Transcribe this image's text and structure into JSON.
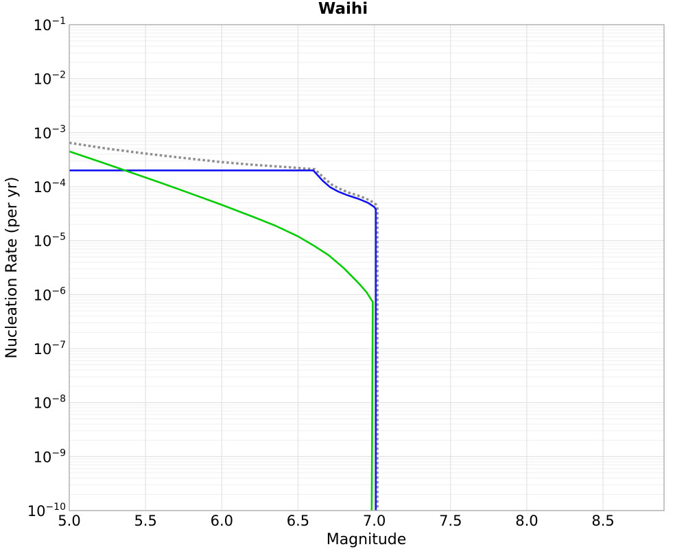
{
  "chart_data": {
    "type": "line",
    "title": "Waihi",
    "xlabel": "Magnitude",
    "ylabel": "Nucleation Rate (per yr)",
    "xlim": [
      5.0,
      8.9
    ],
    "ylim": [
      1e-10,
      0.1
    ],
    "grid": {
      "major": true,
      "minor_y": true,
      "legend": "none"
    },
    "axis_colors": {
      "spine": "#a6a6a6",
      "grid_major": "#e0e0e0",
      "grid_minor": "#efefef",
      "background": "#ffffff"
    },
    "x_ticks": [
      {
        "v": 5.0,
        "label": "5.0"
      },
      {
        "v": 5.5,
        "label": "5.5"
      },
      {
        "v": 6.0,
        "label": "6.0"
      },
      {
        "v": 6.5,
        "label": "6.5"
      },
      {
        "v": 7.0,
        "label": "7.0"
      },
      {
        "v": 7.5,
        "label": "7.5"
      },
      {
        "v": 8.0,
        "label": "8.0"
      },
      {
        "v": 8.5,
        "label": "8.5"
      }
    ],
    "y_tick_base": "10",
    "y_ticks": [
      {
        "exp": -1,
        "label": "-1"
      },
      {
        "exp": -2,
        "label": "-2"
      },
      {
        "exp": -3,
        "label": "-3"
      },
      {
        "exp": -4,
        "label": "-4"
      },
      {
        "exp": -5,
        "label": "-5"
      },
      {
        "exp": -6,
        "label": "-6"
      },
      {
        "exp": -7,
        "label": "-7"
      },
      {
        "exp": -8,
        "label": "-8"
      },
      {
        "exp": -9,
        "label": "-9"
      },
      {
        "exp": -10,
        "label": "-10"
      }
    ],
    "series": [
      {
        "name": "gray-dotted-curve",
        "style": "dotted",
        "color": "#8f8f8f",
        "width": 3.5,
        "points": [
          [
            5.0,
            0.00065
          ],
          [
            5.25,
            0.000505
          ],
          [
            5.5,
            0.00041
          ],
          [
            5.75,
            0.00034
          ],
          [
            6.0,
            0.000285
          ],
          [
            6.2,
            0.000255
          ],
          [
            6.35,
            0.000238
          ],
          [
            6.5,
            0.000222
          ],
          [
            6.61,
            0.00021
          ],
          [
            6.67,
            0.000145
          ],
          [
            6.72,
            0.00011
          ],
          [
            6.77,
            9.2e-05
          ],
          [
            6.83,
            7.8e-05
          ],
          [
            6.91,
            6.6e-05
          ],
          [
            6.97,
            5.6e-05
          ],
          [
            7.01,
            4.7e-05
          ],
          [
            7.02,
            4.2e-05
          ],
          [
            7.02,
            1e-10
          ]
        ]
      },
      {
        "name": "blue-solid-curve",
        "style": "solid",
        "color": "#1212f0",
        "width": 2.6,
        "points": [
          [
            5.0,
            0.0002
          ],
          [
            6.6,
            0.0002
          ],
          [
            6.66,
            0.00013
          ],
          [
            6.71,
            9.8e-05
          ],
          [
            6.76,
            8.2e-05
          ],
          [
            6.82,
            7e-05
          ],
          [
            6.9,
            5.9e-05
          ],
          [
            6.96,
            5e-05
          ],
          [
            7.0,
            4.2e-05
          ],
          [
            7.01,
            3.8e-05
          ],
          [
            7.01,
            1e-10
          ]
        ]
      },
      {
        "name": "green-solid-curve",
        "style": "solid",
        "color": "#00cc00",
        "width": 2.6,
        "points": [
          [
            5.0,
            0.00045
          ],
          [
            5.2,
            0.00029
          ],
          [
            5.4,
            0.000185
          ],
          [
            5.6,
            0.000118
          ],
          [
            5.8,
            7.4e-05
          ],
          [
            6.0,
            4.6e-05
          ],
          [
            6.2,
            2.8e-05
          ],
          [
            6.35,
            1.9e-05
          ],
          [
            6.5,
            1.2e-05
          ],
          [
            6.6,
            8.2e-06
          ],
          [
            6.7,
            5.4e-06
          ],
          [
            6.8,
            3.1e-06
          ],
          [
            6.9,
            1.6e-06
          ],
          [
            6.95,
            1.1e-06
          ],
          [
            6.99,
            7.3e-07
          ],
          [
            6.983,
            1e-10
          ]
        ]
      }
    ]
  }
}
